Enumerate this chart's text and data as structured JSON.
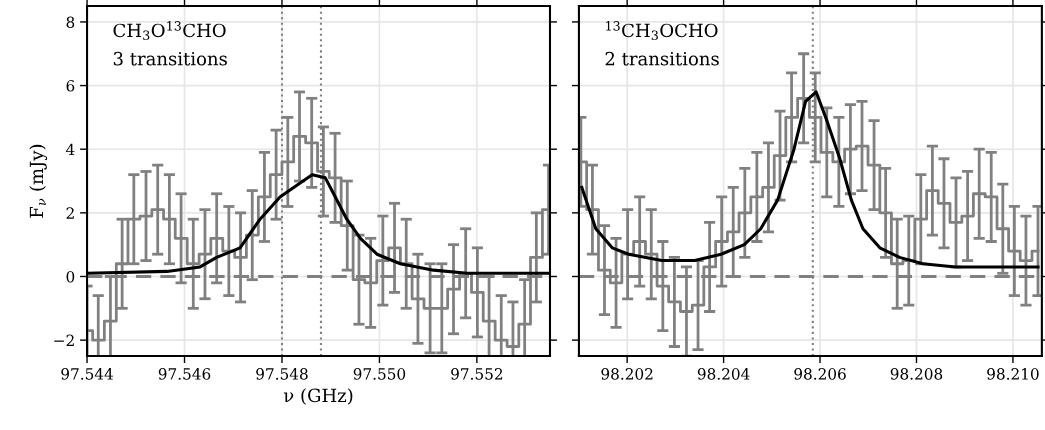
{
  "chart_data": [
    {
      "type": "step",
      "xlabel": "ν (GHz)",
      "ylabel": "F$_{ν}$ (mJy)",
      "annotations": [
        "CH$_{3}$O$^{13}$CHO",
        "3 transitions"
      ],
      "xlim": [
        97.544,
        97.5535
      ],
      "xticks": [
        {
          "value": 97.544,
          "label": "97.544"
        },
        {
          "value": 97.546,
          "label": "97.546"
        },
        {
          "value": 97.548,
          "label": "97.548"
        },
        {
          "value": 97.55,
          "label": "97.550"
        },
        {
          "value": 97.552,
          "label": "97.552"
        }
      ],
      "ylim": [
        -2.5,
        8.5
      ],
      "yticks": [
        {
          "value": -2,
          "label": "−2"
        },
        0,
        2,
        4,
        6,
        8
      ],
      "grid": true,
      "ref_lines": [
        {
          "axis": "y",
          "value": 0,
          "color": "#808080",
          "line_style": "dashed"
        },
        {
          "axis": "x",
          "value": 97.548,
          "color": "#808080",
          "line_style": "dotted"
        },
        {
          "axis": "x",
          "value": 97.5488,
          "color": "#808080",
          "line_style": "dotted"
        }
      ],
      "series": [
        {
          "color": "#808080",
          "x": [
            97.544,
            97.54423,
            97.54448,
            97.54472,
            97.54496,
            97.54521,
            97.54545,
            97.54569,
            97.54593,
            97.54618,
            97.54642,
            97.54666,
            97.54691,
            97.54715,
            97.54739,
            97.54764,
            97.54788,
            97.54812,
            97.54836,
            97.54861,
            97.54885,
            97.54909,
            97.54934,
            97.54958,
            97.54982,
            97.55007,
            97.55031,
            97.55055,
            97.55079,
            97.55104,
            97.55128,
            97.55152,
            97.55177,
            97.55201,
            97.55225,
            97.5525,
            97.55274,
            97.55298,
            97.55322,
            97.55347
          ],
          "values": [
            -1.7,
            -2.0,
            -1.4,
            0.4,
            1.8,
            1.9,
            2.1,
            1.8,
            1.2,
            0.4,
            0.7,
            1.2,
            0.8,
            0.6,
            1.3,
            2.5,
            3.2,
            3.6,
            4.4,
            4.2,
            3.3,
            3.1,
            1.6,
            -0.1,
            -0.2,
            0.5,
            0.9,
            0.4,
            -0.7,
            -1.0,
            -1.0,
            -0.4,
            0.1,
            -0.5,
            -1.4,
            -2.0,
            -2.2,
            -1.5,
            0.6,
            2.1
          ],
          "errors": [
            1.4,
            1.4,
            1.4,
            1.4,
            1.4,
            1.4,
            1.4,
            1.4,
            1.4,
            1.4,
            1.4,
            1.4,
            1.4,
            1.4,
            1.4,
            1.4,
            1.4,
            1.4,
            1.4,
            1.4,
            1.4,
            1.4,
            1.4,
            1.4,
            1.4,
            1.4,
            1.4,
            1.4,
            1.4,
            1.4,
            1.4,
            1.4,
            1.4,
            1.4,
            1.4,
            1.4,
            1.4,
            1.4,
            1.4,
            1.4
          ]
        },
        {
          "type": "line",
          "color": "#000000",
          "x": [
            97.544,
            97.54564,
            97.54632,
            97.54666,
            97.54714,
            97.54755,
            97.54796,
            97.54824,
            97.54862,
            97.54889,
            97.54906,
            97.54933,
            97.54961,
            97.54995,
            97.55043,
            97.55111,
            97.5518,
            97.55347
          ],
          "values": [
            0.1,
            0.16,
            0.3,
            0.6,
            0.9,
            1.8,
            2.5,
            2.8,
            3.2,
            3.1,
            2.6,
            1.8,
            1.2,
            0.7,
            0.4,
            0.2,
            0.1,
            0.1
          ]
        }
      ]
    },
    {
      "type": "step",
      "annotations": [
        "$^{13}$CH$_{3}$OCHO",
        "2 transitions"
      ],
      "xlim": [
        98.201,
        98.2106
      ],
      "xticks": [
        {
          "value": 98.202,
          "label": "98.202"
        },
        {
          "value": 98.204,
          "label": "98.204"
        },
        {
          "value": 98.206,
          "label": "98.206"
        },
        {
          "value": 98.208,
          "label": "98.208"
        },
        {
          "value": 98.21,
          "label": "98.210"
        }
      ],
      "ylim": [
        -2.5,
        8.5
      ],
      "yticks": [
        -2,
        0,
        2,
        4,
        6,
        8
      ],
      "tick_labels": "x",
      "grid": true,
      "ref_lines": [
        {
          "axis": "y",
          "value": 0,
          "color": "#808080",
          "line_style": "dashed"
        },
        {
          "axis": "x",
          "value": 98.20585,
          "color": "#808080",
          "line_style": "dotted"
        }
      ],
      "series": [
        {
          "color": "#808080",
          "x": [
            98.20104,
            98.20128,
            98.20153,
            98.20177,
            98.20201,
            98.20226,
            98.2025,
            98.20274,
            98.20298,
            98.20323,
            98.20347,
            98.20371,
            98.20396,
            98.2042,
            98.20444,
            98.20469,
            98.20493,
            98.20517,
            98.20541,
            98.20566,
            98.2059,
            98.20614,
            98.20639,
            98.20663,
            98.20687,
            98.20712,
            98.20736,
            98.2076,
            98.20784,
            98.20809,
            98.20833,
            98.20857,
            98.20882,
            98.20906,
            98.2093,
            98.20955,
            98.20979,
            98.21003,
            98.21027,
            98.21052
          ],
          "values": [
            3.6,
            2.1,
            0.2,
            -0.2,
            0.7,
            1.1,
            0.7,
            -0.3,
            -0.8,
            -1.1,
            -0.9,
            0.3,
            1.1,
            1.4,
            2.0,
            2.5,
            2.8,
            3.8,
            5.0,
            5.6,
            5.0,
            3.9,
            3.6,
            4.0,
            4.1,
            3.5,
            2.0,
            0.4,
            0.5,
            1.8,
            2.7,
            2.3,
            1.7,
            1.9,
            2.6,
            2.5,
            1.5,
            0.8,
            0.5,
            0.8
          ],
          "errors": [
            1.4,
            1.4,
            1.4,
            1.4,
            1.4,
            1.4,
            1.4,
            1.4,
            1.4,
            1.4,
            1.4,
            1.4,
            1.4,
            1.4,
            1.4,
            1.4,
            1.4,
            1.4,
            1.4,
            1.4,
            1.4,
            1.4,
            1.4,
            1.4,
            1.4,
            1.4,
            1.4,
            1.4,
            1.4,
            1.4,
            1.4,
            1.4,
            1.4,
            1.4,
            1.4,
            1.4,
            1.4,
            1.4,
            1.4,
            1.4
          ]
        },
        {
          "type": "line",
          "color": "#000000",
          "x": [
            98.20106,
            98.20135,
            98.20169,
            98.20203,
            98.20272,
            98.2034,
            98.20395,
            98.20443,
            98.20477,
            98.20512,
            98.20546,
            98.2057,
            98.20592,
            98.20614,
            98.20641,
            98.20665,
            98.20689,
            98.20724,
            98.20765,
            98.20813,
            98.20881,
            98.21052
          ],
          "values": [
            2.8,
            1.5,
            0.9,
            0.7,
            0.5,
            0.5,
            0.7,
            1.0,
            1.5,
            2.4,
            4.0,
            5.5,
            5.8,
            4.9,
            3.7,
            2.4,
            1.5,
            0.9,
            0.6,
            0.4,
            0.3,
            0.3
          ]
        }
      ]
    }
  ]
}
